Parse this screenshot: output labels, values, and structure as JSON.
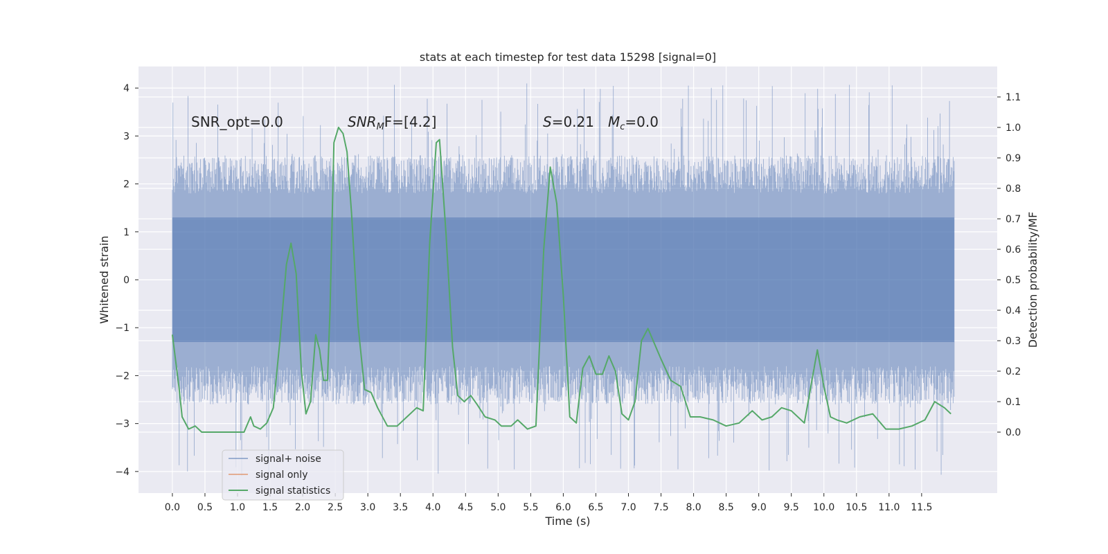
{
  "chart_data": {
    "type": "line",
    "title": "stats at each timestep for test data 15298 [signal=0]",
    "xlabel": "Time (s)",
    "ylabel": "Whitened strain",
    "ylabel_right": "Detection probability/MF",
    "xlim": [
      -0.52,
      12.66
    ],
    "ylim": [
      -4.45,
      4.45
    ],
    "ylim_right": [
      -0.2,
      1.2
    ],
    "x_ticks": [
      "0.0",
      "0.5",
      "1.0",
      "1.5",
      "2.0",
      "2.5",
      "3.0",
      "3.5",
      "4.0",
      "4.5",
      "5.0",
      "5.5",
      "6.0",
      "6.5",
      "7.0",
      "7.5",
      "8.0",
      "8.5",
      "9.0",
      "9.5",
      "10.0",
      "10.5",
      "11.0",
      "11.5"
    ],
    "y_ticks": [
      "4",
      "3",
      "2",
      "1",
      "0",
      "−1",
      "−2",
      "−3",
      "−4"
    ],
    "y_ticks_right": [
      "1.1",
      "1.0",
      "0.9",
      "0.8",
      "0.7",
      "0.6",
      "0.5",
      "0.4",
      "0.3",
      "0.2",
      "0.1",
      "0.0"
    ],
    "grid": true,
    "legend_placement": "lower-left",
    "annotations": {
      "snr_opt": "SNR_opt=0.0",
      "snr_mf_main": "SNR",
      "snr_mf_sub": "M",
      "snr_mf_tail": "F=[4.2]",
      "s_var": "S",
      "s_val": "=0.21",
      "mc_var": "M",
      "mc_sub": "c",
      "mc_val": "=0.0"
    },
    "series": [
      {
        "name": "signal+ noise",
        "color": "#4c72b0",
        "axis": "left",
        "description": "whitened strain noise, dense vertical band",
        "x_range": [
          0.0,
          12.0
        ],
        "core_band": [
          -1.3,
          1.3
        ],
        "upper_envelope": [
          1.8,
          2.6
        ],
        "lower_envelope": [
          -1.8,
          -2.6
        ],
        "max": 4.1,
        "min": -4.1
      },
      {
        "name": "signal only",
        "color": "#dd8452",
        "axis": "left",
        "x": [],
        "y": []
      },
      {
        "name": "signal statistics",
        "color": "#55a868",
        "axis": "right",
        "x": [
          0.0,
          0.1,
          0.15,
          0.25,
          0.35,
          0.45,
          0.55,
          0.7,
          0.9,
          1.1,
          1.2,
          1.25,
          1.35,
          1.45,
          1.55,
          1.65,
          1.75,
          1.82,
          1.9,
          1.98,
          2.05,
          2.12,
          2.2,
          2.26,
          2.32,
          2.38,
          2.42,
          2.48,
          2.55,
          2.62,
          2.68,
          2.75,
          2.85,
          2.95,
          3.05,
          3.15,
          3.3,
          3.45,
          3.6,
          3.75,
          3.85,
          3.95,
          4.05,
          4.1,
          4.2,
          4.3,
          4.38,
          4.48,
          4.58,
          4.68,
          4.8,
          4.95,
          5.05,
          5.2,
          5.3,
          5.45,
          5.58,
          5.7,
          5.8,
          5.9,
          6.0,
          6.1,
          6.2,
          6.3,
          6.4,
          6.5,
          6.6,
          6.7,
          6.8,
          6.9,
          7.0,
          7.1,
          7.2,
          7.3,
          7.38,
          7.5,
          7.65,
          7.8,
          7.95,
          8.1,
          8.3,
          8.5,
          8.7,
          8.9,
          9.05,
          9.2,
          9.35,
          9.5,
          9.7,
          9.9,
          10.0,
          10.1,
          10.2,
          10.35,
          10.55,
          10.75,
          10.95,
          11.15,
          11.35,
          11.55,
          11.7,
          11.85,
          11.95
        ],
        "y": [
          0.32,
          0.15,
          0.05,
          0.01,
          0.02,
          0.0,
          0.0,
          0.0,
          0.0,
          0.0,
          0.05,
          0.02,
          0.01,
          0.03,
          0.08,
          0.3,
          0.55,
          0.62,
          0.52,
          0.2,
          0.06,
          0.1,
          0.32,
          0.27,
          0.17,
          0.17,
          0.4,
          0.95,
          1.0,
          0.98,
          0.92,
          0.72,
          0.35,
          0.14,
          0.13,
          0.08,
          0.02,
          0.02,
          0.05,
          0.08,
          0.07,
          0.62,
          0.95,
          0.96,
          0.65,
          0.28,
          0.12,
          0.1,
          0.12,
          0.09,
          0.05,
          0.04,
          0.02,
          0.02,
          0.04,
          0.01,
          0.02,
          0.6,
          0.87,
          0.75,
          0.45,
          0.05,
          0.03,
          0.21,
          0.25,
          0.19,
          0.19,
          0.25,
          0.2,
          0.06,
          0.04,
          0.1,
          0.3,
          0.34,
          0.3,
          0.24,
          0.17,
          0.15,
          0.05,
          0.05,
          0.04,
          0.02,
          0.03,
          0.07,
          0.04,
          0.05,
          0.08,
          0.07,
          0.03,
          0.27,
          0.15,
          0.05,
          0.04,
          0.03,
          0.05,
          0.06,
          0.01,
          0.01,
          0.02,
          0.04,
          0.1,
          0.08,
          0.06
        ]
      }
    ]
  }
}
